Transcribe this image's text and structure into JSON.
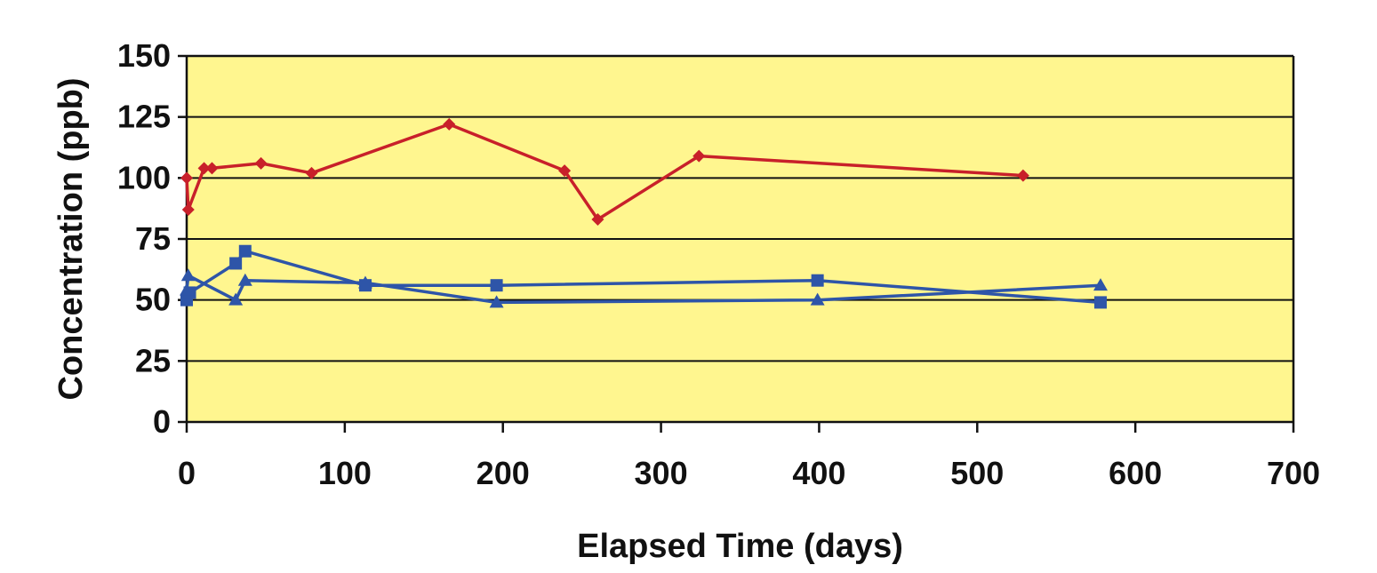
{
  "chart_data": {
    "type": "line",
    "title": "",
    "xlabel": "Elapsed Time (days)",
    "ylabel": "Concentration (ppb)",
    "xlim": [
      0,
      700
    ],
    "ylim": [
      0,
      150
    ],
    "x_ticks": [
      0,
      100,
      200,
      300,
      400,
      500,
      600,
      700
    ],
    "y_ticks": [
      0,
      25,
      50,
      75,
      100,
      125,
      150
    ],
    "x_tick_labels": [
      "0",
      "100",
      "200",
      "300",
      "400",
      "500",
      "600",
      "700"
    ],
    "y_tick_labels": [
      "0",
      "25",
      "50",
      "75",
      "100",
      "125",
      "150"
    ],
    "grid": "horizontal",
    "legend": "none",
    "plot_background": "#FFF68F",
    "series": [
      {
        "color": "#C8202A",
        "marker": "diamond",
        "points": [
          [
            0,
            100
          ],
          [
            1,
            87
          ],
          [
            11,
            104
          ],
          [
            16,
            104
          ],
          [
            47,
            106
          ],
          [
            79,
            102
          ],
          [
            166,
            122
          ],
          [
            239,
            103
          ],
          [
            260,
            83
          ],
          [
            324,
            109
          ],
          [
            529,
            101
          ]
        ]
      },
      {
        "color": "#2E55A8",
        "marker": "square",
        "points": [
          [
            0,
            50
          ],
          [
            2,
            53
          ],
          [
            31,
            65
          ],
          [
            37,
            70
          ],
          [
            113,
            56
          ],
          [
            196,
            56
          ],
          [
            399,
            58
          ],
          [
            578,
            49
          ]
        ]
      },
      {
        "color": "#2E55A8",
        "marker": "triangle",
        "points": [
          [
            0,
            54
          ],
          [
            1,
            60
          ],
          [
            31,
            50
          ],
          [
            37,
            58
          ],
          [
            113,
            57
          ],
          [
            196,
            49
          ],
          [
            399,
            50
          ],
          [
            578,
            56
          ]
        ]
      }
    ]
  }
}
